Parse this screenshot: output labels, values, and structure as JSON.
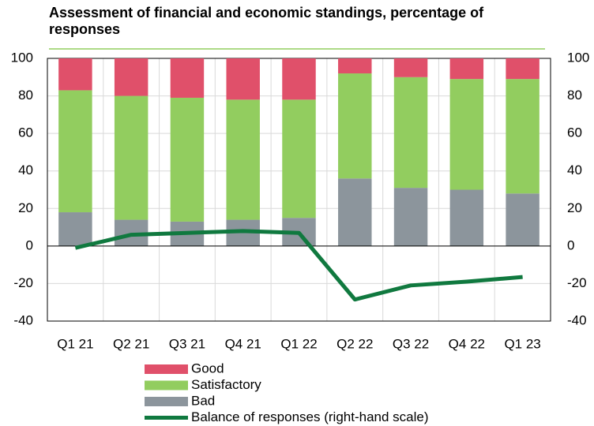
{
  "chart_data": {
    "type": "bar",
    "stacked": true,
    "title": "Assessment of financial and economic standings, percentage of responses",
    "categories": [
      "Q1 21",
      "Q2 21",
      "Q3 21",
      "Q4 21",
      "Q1 22",
      "Q2 22",
      "Q3 22",
      "Q4 22",
      "Q1 23"
    ],
    "series": [
      {
        "name": "Good",
        "color": "#e0506a",
        "values": [
          17,
          20,
          21,
          22,
          22,
          8,
          10,
          11,
          11
        ]
      },
      {
        "name": "Satisfactory",
        "color": "#92cd5f",
        "values": [
          65,
          66,
          66,
          64,
          63,
          56,
          59,
          59,
          61
        ]
      },
      {
        "name": "Bad",
        "color": "#8c959c",
        "values": [
          18,
          14,
          13,
          14,
          15,
          36,
          31,
          30,
          28
        ]
      },
      {
        "name": "Balance of responses (right-hand scale)",
        "color": "#10793f",
        "type": "line",
        "axis": "y2",
        "values": [
          -1,
          6,
          7,
          8,
          7,
          -28.5,
          -21,
          -19,
          -16.5
        ]
      }
    ],
    "ylim": [
      -40,
      100
    ],
    "yticks": [
      -40,
      -20,
      0,
      20,
      40,
      60,
      80,
      100
    ],
    "y2lim": [
      -40,
      100
    ],
    "y2ticks": [
      -40,
      -20,
      0,
      20,
      40,
      60,
      80,
      100
    ],
    "grid": true
  }
}
